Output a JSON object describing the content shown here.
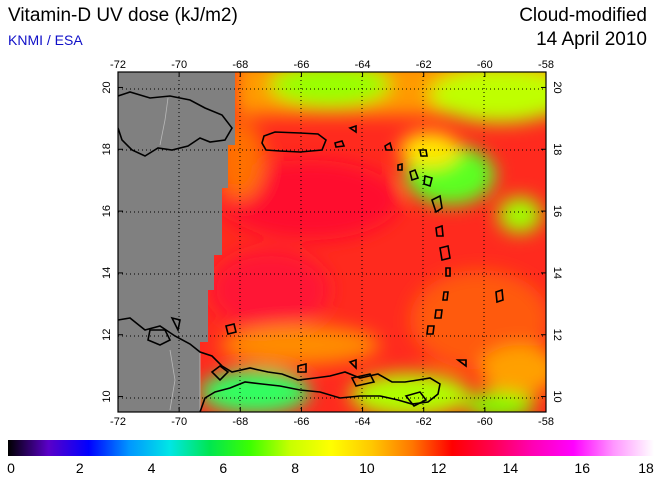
{
  "header": {
    "title": "Vitamin-D UV dose (kJ/m2)",
    "credit": "KNMI / ESA",
    "mode": "Cloud-modified",
    "date": "14 April 2010"
  },
  "map": {
    "lon_range": [
      -72,
      -58
    ],
    "lat_range": [
      9.5,
      20.5
    ],
    "lon_ticks": [
      "-72",
      "-70",
      "-68",
      "-66",
      "-64",
      "-62",
      "-60",
      "-58"
    ],
    "lat_ticks": [
      "10",
      "12",
      "14",
      "16",
      "18",
      "20"
    ],
    "no_data_color": "#808080",
    "grid": "dotted"
  },
  "colorbar": {
    "range": [
      0,
      18
    ],
    "ticks": [
      "0",
      "2",
      "4",
      "6",
      "8",
      "10",
      "12",
      "14",
      "16",
      "18"
    ],
    "colors": [
      "#000000",
      "#5a00c8",
      "#0000ff",
      "#0096ff",
      "#00e6e6",
      "#00e650",
      "#3cff00",
      "#c8ff00",
      "#ffff00",
      "#ffc800",
      "#ff7800",
      "#ff0000",
      "#ff0050",
      "#ff00b4",
      "#ff00ff",
      "#ff96ff",
      "#ffffff"
    ]
  }
}
